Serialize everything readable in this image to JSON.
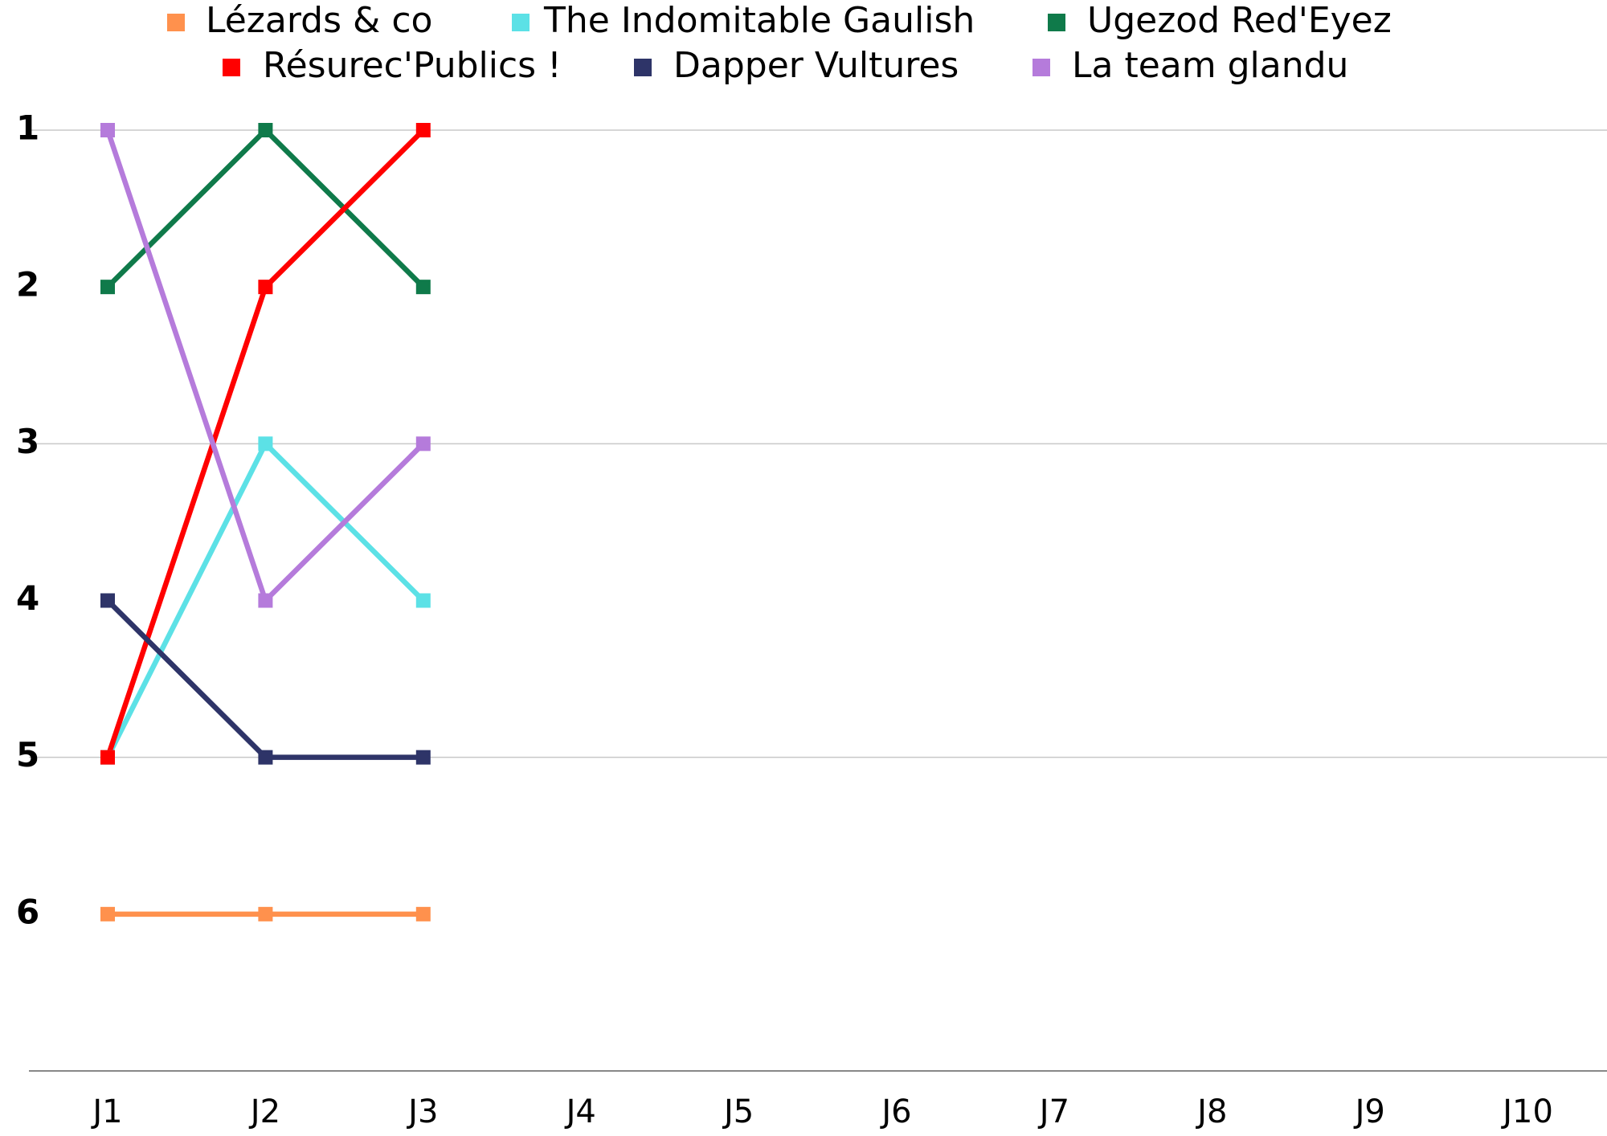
{
  "chart_data": {
    "type": "line",
    "categories": [
      "J1",
      "J2",
      "J3",
      "J4",
      "J5",
      "J6",
      "J7",
      "J8",
      "J9",
      "J10"
    ],
    "series": [
      {
        "name": "Lézards & co",
        "color": "#ff914d",
        "values": [
          6,
          6,
          6,
          null,
          null,
          null,
          null,
          null,
          null,
          null
        ]
      },
      {
        "name": "The Indomitable Gaulish",
        "color": "#5ce1e6",
        "values": [
          5,
          3,
          4,
          null,
          null,
          null,
          null,
          null,
          null,
          null
        ]
      },
      {
        "name": "Ugezod Red'Eyez",
        "color": "#0f7a4a",
        "values": [
          2,
          1,
          2,
          null,
          null,
          null,
          null,
          null,
          null,
          null
        ]
      },
      {
        "name": "Résurec'Publics !",
        "color": "#ff0000",
        "values": [
          5,
          2,
          1,
          null,
          null,
          null,
          null,
          null,
          null,
          null
        ]
      },
      {
        "name": "Dapper Vultures",
        "color": "#2e3468",
        "values": [
          4,
          5,
          5,
          null,
          null,
          null,
          null,
          null,
          null,
          null
        ]
      },
      {
        "name": "La team glandu",
        "color": "#b57bdb",
        "values": [
          1,
          4,
          3,
          null,
          null,
          null,
          null,
          null,
          null,
          null
        ]
      }
    ],
    "ylim": [
      1,
      7
    ],
    "yticks": [
      1,
      2,
      3,
      4,
      5,
      6
    ],
    "y_reversed": true,
    "ygrid": [
      1,
      3,
      5
    ],
    "legend": "top"
  }
}
